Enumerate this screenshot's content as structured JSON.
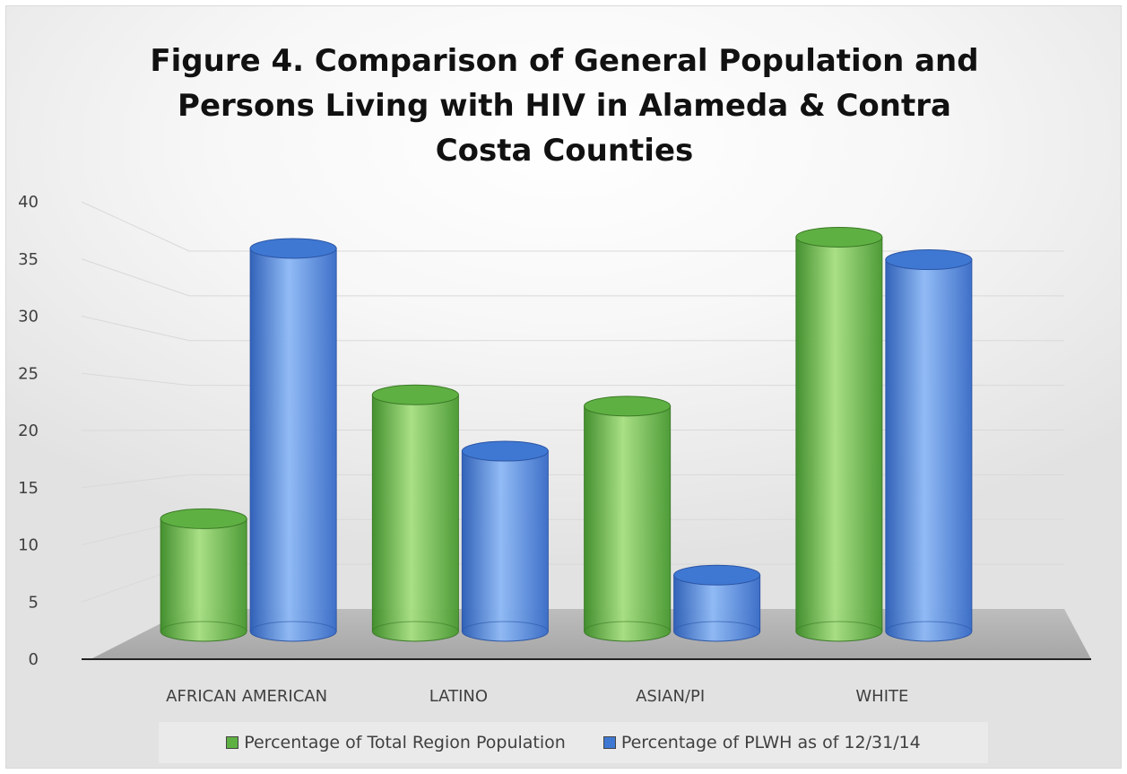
{
  "chart_data": {
    "type": "bar",
    "title": "Figure 4. Comparison of General Population and Persons Living with HIV in Alameda & Contra Costa Counties",
    "categories": [
      "AFRICAN AMERICAN",
      "LATINO",
      "ASIAN/PI",
      "WHITE"
    ],
    "series": [
      {
        "name": "Percentage of Total Region Population",
        "values": [
          10,
          21,
          20,
          35
        ],
        "color": "#5fb043"
      },
      {
        "name": "Percentage of PLWH as of 12/31/14",
        "values": [
          34,
          16,
          5,
          33
        ],
        "color": "#3f78d3"
      }
    ],
    "y_ticks": [
      "0",
      "5",
      "10",
      "15",
      "20",
      "25",
      "30",
      "35",
      "40"
    ],
    "ylim": [
      0,
      40
    ],
    "grid": true,
    "legend_position": "bottom",
    "style": "3d-cylinder"
  }
}
